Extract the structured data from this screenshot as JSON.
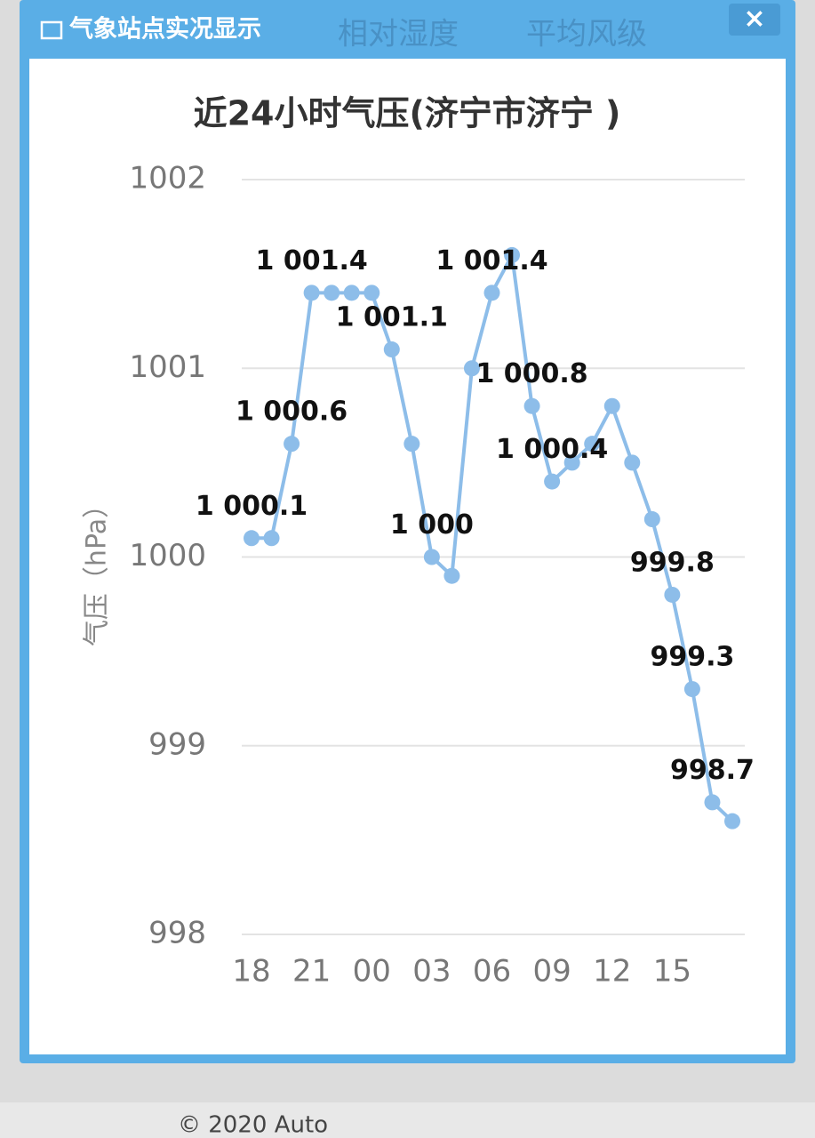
{
  "window": {
    "title": "气象站点实况显示",
    "close": "×"
  },
  "background": {
    "tabs": [
      "相对湿度",
      "平均风级"
    ],
    "footer": "© 2020 Auto"
  },
  "chart_data": {
    "type": "line",
    "title": "近24小时气压(济宁市济宁 )",
    "y_label": "气压（hPa）",
    "categories": [
      "18",
      null,
      null,
      "21",
      null,
      null,
      "00",
      null,
      null,
      "03",
      null,
      null,
      "06",
      null,
      null,
      "09",
      null,
      null,
      "12",
      null,
      null,
      "15",
      null,
      null,
      null
    ],
    "values": [
      1000.1,
      1000.1,
      1000.6,
      1001.4,
      1001.4,
      1001.4,
      1001.4,
      1001.1,
      1000.6,
      1000.0,
      999.9,
      1001.0,
      1001.4,
      1001.6,
      1000.8,
      1000.4,
      1000.5,
      1000.6,
      1000.8,
      1000.5,
      1000.2,
      999.8,
      999.3,
      998.7,
      998.6
    ],
    "value_labels": [
      "1 000.1",
      null,
      "1 000.6",
      "1 001.4",
      null,
      null,
      null,
      "1 001.1",
      null,
      "1 000",
      null,
      null,
      "1 001.4",
      null,
      "1 000.8",
      "1 000.4",
      null,
      null,
      null,
      null,
      null,
      "999.8",
      "999.3",
      "998.7",
      null
    ],
    "color": "#8dbde9",
    "ylim": [
      998,
      1002
    ],
    "yticks": [
      998,
      999,
      1000,
      1001,
      1002
    ],
    "grid": true
  }
}
